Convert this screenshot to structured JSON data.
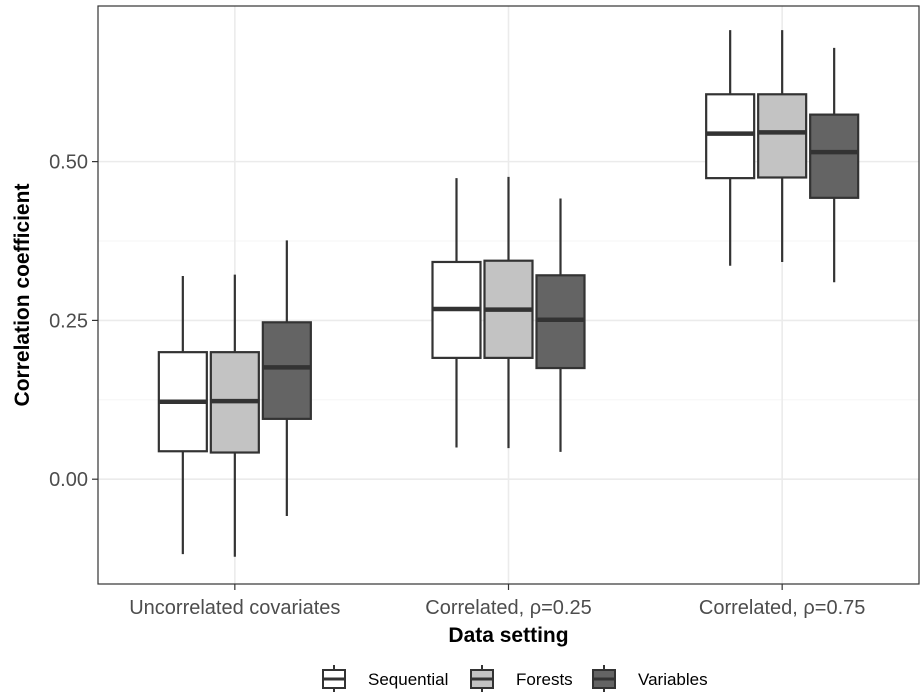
{
  "chart_data": {
    "type": "box",
    "title": "",
    "xlabel": "Data setting",
    "ylabel": "Correlation coefficient",
    "ylim": [
      -0.165,
      0.745
    ],
    "yticks": [
      0.0,
      0.25,
      0.5
    ],
    "ytick_labels": [
      "0.00",
      "0.25",
      "0.50"
    ],
    "categories": [
      "Uncorrelated covariates",
      "Correlated, ρ=0.25",
      "Correlated, ρ=0.75"
    ],
    "grid": true,
    "legend_position": "bottom",
    "series": [
      {
        "name": "Sequential",
        "color": "#ffffff",
        "boxes": [
          {
            "whisker_low": -0.118,
            "q1": 0.044,
            "median": 0.122,
            "q3": 0.2,
            "whisker_high": 0.32
          },
          {
            "whisker_low": 0.05,
            "q1": 0.191,
            "median": 0.268,
            "q3": 0.342,
            "whisker_high": 0.474
          },
          {
            "whisker_low": 0.336,
            "q1": 0.474,
            "median": 0.544,
            "q3": 0.606,
            "whisker_high": 0.707
          }
        ]
      },
      {
        "name": "Forests",
        "color": "#c3c3c3",
        "boxes": [
          {
            "whisker_low": -0.122,
            "q1": 0.042,
            "median": 0.123,
            "q3": 0.2,
            "whisker_high": 0.322
          },
          {
            "whisker_low": 0.049,
            "q1": 0.191,
            "median": 0.267,
            "q3": 0.344,
            "whisker_high": 0.476
          },
          {
            "whisker_low": 0.342,
            "q1": 0.475,
            "median": 0.546,
            "q3": 0.606,
            "whisker_high": 0.707
          }
        ]
      },
      {
        "name": "Variables",
        "color": "#646464",
        "boxes": [
          {
            "whisker_low": -0.058,
            "q1": 0.095,
            "median": 0.176,
            "q3": 0.247,
            "whisker_high": 0.376
          },
          {
            "whisker_low": 0.043,
            "q1": 0.175,
            "median": 0.251,
            "q3": 0.321,
            "whisker_high": 0.442
          },
          {
            "whisker_low": 0.31,
            "q1": 0.443,
            "median": 0.515,
            "q3": 0.574,
            "whisker_high": 0.679
          }
        ]
      }
    ]
  }
}
